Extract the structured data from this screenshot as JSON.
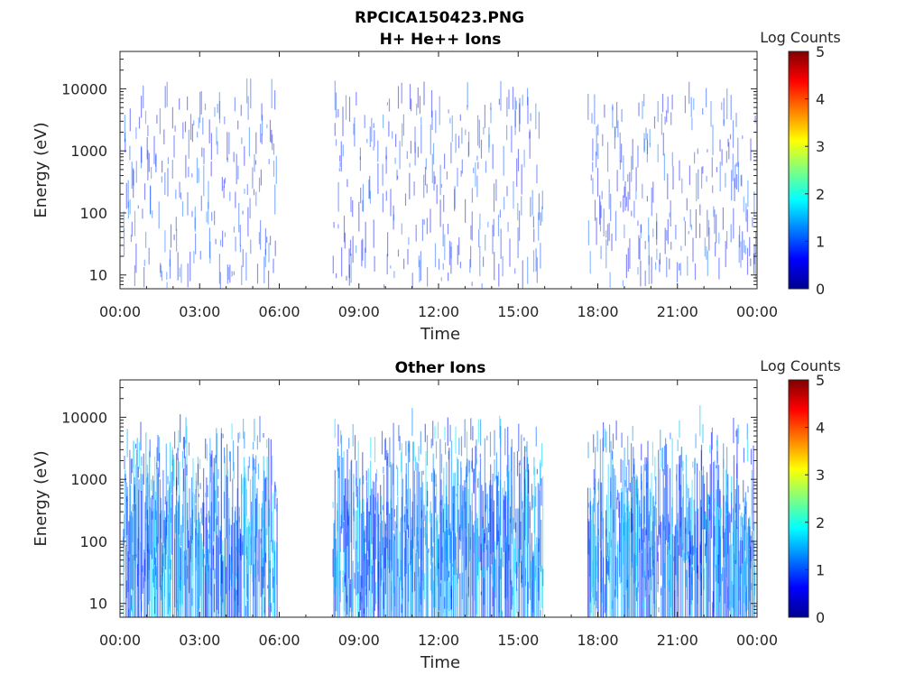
{
  "figure_title": "RPCICA150423.PNG",
  "chart_data": [
    {
      "type": "heatmap",
      "title": "H+ He++ Ions",
      "xlabel": "Time",
      "ylabel": "Energy (eV)",
      "x_tick_labels": [
        "00:00",
        "03:00",
        "06:00",
        "09:00",
        "12:00",
        "15:00",
        "18:00",
        "21:00",
        "00:00"
      ],
      "x_ticks_hours": [
        0,
        3,
        6,
        9,
        12,
        15,
        18,
        21,
        24
      ],
      "y_scale": "log",
      "ylim": [
        6,
        40000
      ],
      "y_ticks": [
        10,
        100,
        1000,
        10000
      ],
      "y_tick_labels": [
        "10",
        "100",
        "1000",
        "10000"
      ],
      "colorbar": {
        "label": "Log Counts",
        "range": [
          0,
          5
        ],
        "tick_labels": [
          "0",
          "1",
          "2",
          "3",
          "4",
          "5"
        ],
        "colormap": "jet"
      },
      "data_gaps_hours": [
        [
          5.9,
          8.0
        ],
        [
          15.9,
          17.6
        ]
      ],
      "data_segments_hours": [
        [
          0.1,
          5.9
        ],
        [
          8.0,
          15.9
        ],
        [
          17.6,
          23.9
        ]
      ],
      "typical_log_counts": [
        0.5,
        1.2
      ],
      "typical_energy_range_eV": [
        6,
        6000
      ],
      "note_intensity": "sparse"
    },
    {
      "type": "heatmap",
      "title": "Other Ions",
      "xlabel": "Time",
      "ylabel": "Energy (eV)",
      "x_tick_labels": [
        "00:00",
        "03:00",
        "06:00",
        "09:00",
        "12:00",
        "15:00",
        "18:00",
        "21:00",
        "00:00"
      ],
      "x_ticks_hours": [
        0,
        3,
        6,
        9,
        12,
        15,
        18,
        21,
        24
      ],
      "y_scale": "log",
      "ylim": [
        6,
        40000
      ],
      "y_ticks": [
        10,
        100,
        1000,
        10000
      ],
      "y_tick_labels": [
        "10",
        "100",
        "1000",
        "10000"
      ],
      "colorbar": {
        "label": "Log Counts",
        "range": [
          0,
          5
        ],
        "tick_labels": [
          "0",
          "1",
          "2",
          "3",
          "4",
          "5"
        ],
        "colormap": "jet"
      },
      "data_gaps_hours": [
        [
          5.9,
          8.0
        ],
        [
          15.9,
          17.6
        ]
      ],
      "data_segments_hours": [
        [
          0.1,
          5.9
        ],
        [
          8.0,
          15.9
        ],
        [
          17.6,
          23.9
        ]
      ],
      "typical_log_counts": [
        0.6,
        1.8
      ],
      "typical_energy_range_eV": [
        6,
        5000
      ],
      "note_intensity": "dense"
    }
  ]
}
